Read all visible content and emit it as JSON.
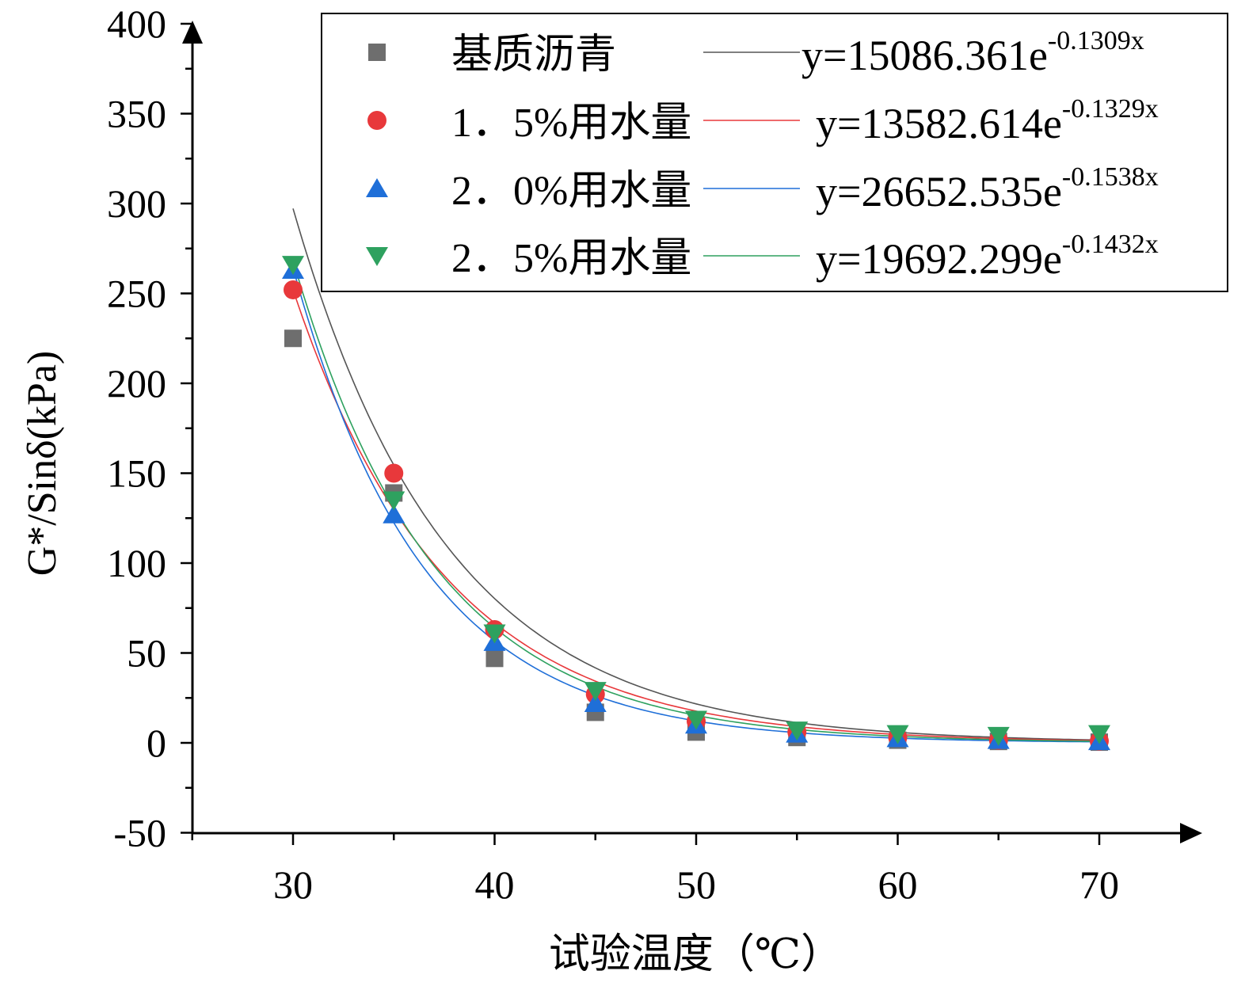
{
  "chart_data": {
    "type": "scatter",
    "title": "",
    "xlabel": "试验温度（℃）",
    "ylabel": "G*/Sinδ(kPa)",
    "xlim": [
      25,
      75
    ],
    "ylim": [
      -50,
      400
    ],
    "x_ticks": [
      30,
      40,
      50,
      60,
      70
    ],
    "x_tick_labels": [
      "30",
      "40",
      "50",
      "60",
      "70"
    ],
    "y_ticks": [
      -50,
      0,
      50,
      100,
      150,
      200,
      250,
      300,
      350,
      400
    ],
    "y_tick_labels": [
      "-50",
      "0",
      "50",
      "100",
      "150",
      "200",
      "250",
      "300",
      "350",
      "400"
    ],
    "legend_position": "top-right",
    "x": [
      30,
      35,
      40,
      45,
      50,
      55,
      60,
      65,
      70
    ],
    "series": [
      {
        "name": "基质沥青",
        "marker": "square",
        "color": "#6e6e6e",
        "line_color": "#555555",
        "values": [
          225,
          139,
          47,
          17,
          6,
          3,
          1.5,
          0.8,
          0.4
        ],
        "fit": {
          "a": 15086.361,
          "b": -0.1309
        },
        "equation_main": "y=15086.361e",
        "equation_exp": "-0.1309x"
      },
      {
        "name": "1．5%用水量",
        "marker": "circle",
        "color": "#e8383b",
        "line_color": "#e8383b",
        "values": [
          252,
          150,
          63,
          27,
          12,
          6,
          3,
          1.5,
          1
        ],
        "fit": {
          "a": 13582.614,
          "b": -0.1329
        },
        "equation_main": "y=13582.614e",
        "equation_exp": "-0.1329x"
      },
      {
        "name": "2．0%用水量",
        "marker": "triangle-up",
        "color": "#1f6fd8",
        "line_color": "#1f6fd8",
        "values": [
          263,
          127,
          56,
          22,
          10,
          5,
          2.5,
          1.5,
          0.8
        ],
        "fit": {
          "a": 26652.535,
          "b": -0.1538
        },
        "equation_main": "y=26652.535e",
        "equation_exp": "-0.1538x"
      },
      {
        "name": "2．5%用水量",
        "marker": "triangle-down",
        "color": "#2ea15f",
        "line_color": "#2ea15f",
        "values": [
          266,
          135,
          61,
          29,
          13,
          7,
          5,
          4,
          5
        ],
        "fit": {
          "a": 19692.299,
          "b": -0.1432
        },
        "equation_main": "y=19692.299e",
        "equation_exp": "-0.1432x"
      }
    ]
  }
}
